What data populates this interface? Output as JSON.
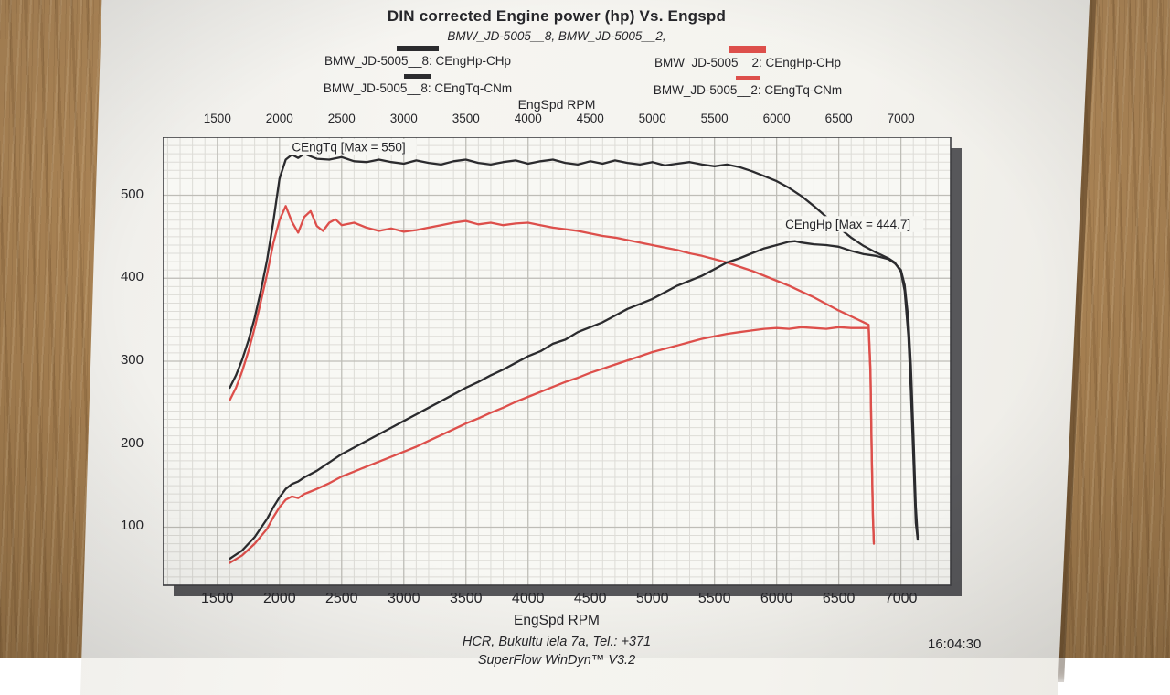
{
  "header": {
    "title": "DIN corrected Engine power (hp) Vs. Engspd",
    "subtitle": "BMW_JD-5005__8, BMW_JD-5005__2,"
  },
  "legend": {
    "columns": [
      {
        "items": [
          {
            "label": "BMW_JD-5005__8: CEngHp-CHp",
            "color": "#2b2b2e",
            "swatch_w": 46,
            "swatch_h": 6
          },
          {
            "label": "BMW_JD-5005__8: CEngTq-CNm",
            "color": "#2b2b2e",
            "swatch_w": 30,
            "swatch_h": 5
          }
        ]
      },
      {
        "items": [
          {
            "label": "BMW_JD-5005__2: CEngHp-CHp",
            "color": "#dd4f4b",
            "swatch_w": 40,
            "swatch_h": 8
          },
          {
            "label": "BMW_JD-5005__2: CEngTq-CNm",
            "color": "#dd4f4b",
            "swatch_w": 27,
            "swatch_h": 5
          }
        ]
      }
    ]
  },
  "axes": {
    "top_label": "EngSpd RPM",
    "bottom_label": "EngSpd RPM"
  },
  "footer": {
    "line1": "HCR, Bukultu iela 7a, Tel.: +371",
    "line2": "SuperFlow WinDyn™ V3.2",
    "timestamp": "16:04:30"
  },
  "chart_data": {
    "type": "line",
    "title": "DIN corrected Engine power (hp) Vs. Engspd",
    "xlabel": "EngSpd RPM",
    "ylabel": "",
    "xlim": [
      1060,
      7400
    ],
    "ylim": [
      30,
      570
    ],
    "x_ticks": [
      1500,
      2000,
      2500,
      3000,
      3500,
      4000,
      4500,
      5000,
      5500,
      6000,
      6500,
      7000
    ],
    "y_ticks": [
      100,
      200,
      300,
      400,
      500
    ],
    "grid": {
      "minor_x_step": 100,
      "minor_y_step": 10
    },
    "annotations": [
      {
        "text": "CEngTq [Max = 550]",
        "x": 2100,
        "y": 553
      },
      {
        "text": "CEngHp [Max = 444.7]",
        "x": 6070,
        "y": 460
      }
    ],
    "series": [
      {
        "name": "BMW_JD-5005__2: CEngTq-CNm",
        "color": "#dd4f4b",
        "width": 2.3,
        "points": [
          [
            1600,
            253
          ],
          [
            1650,
            268
          ],
          [
            1700,
            288
          ],
          [
            1750,
            312
          ],
          [
            1800,
            340
          ],
          [
            1850,
            372
          ],
          [
            1900,
            405
          ],
          [
            1950,
            442
          ],
          [
            2000,
            470
          ],
          [
            2050,
            487
          ],
          [
            2100,
            468
          ],
          [
            2150,
            455
          ],
          [
            2200,
            474
          ],
          [
            2250,
            481
          ],
          [
            2300,
            463
          ],
          [
            2350,
            457
          ],
          [
            2400,
            467
          ],
          [
            2450,
            471
          ],
          [
            2500,
            464
          ],
          [
            2600,
            467
          ],
          [
            2700,
            461
          ],
          [
            2800,
            457
          ],
          [
            2900,
            460
          ],
          [
            3000,
            456
          ],
          [
            3100,
            458
          ],
          [
            3200,
            461
          ],
          [
            3300,
            464
          ],
          [
            3400,
            467
          ],
          [
            3500,
            469
          ],
          [
            3600,
            465
          ],
          [
            3700,
            467
          ],
          [
            3800,
            464
          ],
          [
            3900,
            466
          ],
          [
            4000,
            467
          ],
          [
            4100,
            464
          ],
          [
            4200,
            461
          ],
          [
            4300,
            459
          ],
          [
            4400,
            457
          ],
          [
            4500,
            454
          ],
          [
            4600,
            451
          ],
          [
            4700,
            449
          ],
          [
            4800,
            446
          ],
          [
            4900,
            443
          ],
          [
            5000,
            440
          ],
          [
            5100,
            437
          ],
          [
            5200,
            434
          ],
          [
            5300,
            430
          ],
          [
            5400,
            427
          ],
          [
            5500,
            423
          ],
          [
            5600,
            419
          ],
          [
            5700,
            414
          ],
          [
            5800,
            409
          ],
          [
            5900,
            403
          ],
          [
            6000,
            397
          ],
          [
            6100,
            391
          ],
          [
            6200,
            384
          ],
          [
            6300,
            377
          ],
          [
            6400,
            369
          ],
          [
            6500,
            361
          ],
          [
            6600,
            354
          ],
          [
            6700,
            347
          ],
          [
            6740,
            344
          ],
          [
            6755,
            290
          ],
          [
            6765,
            190
          ],
          [
            6775,
            115
          ],
          [
            6782,
            82
          ]
        ]
      },
      {
        "name": "BMW_JD-5005__2: CEngHp-CHp",
        "color": "#dd4f4b",
        "width": 2.3,
        "points": [
          [
            1600,
            57
          ],
          [
            1700,
            66
          ],
          [
            1800,
            80
          ],
          [
            1900,
            98
          ],
          [
            1950,
            112
          ],
          [
            2000,
            124
          ],
          [
            2050,
            133
          ],
          [
            2100,
            137
          ],
          [
            2150,
            135
          ],
          [
            2200,
            140
          ],
          [
            2250,
            143
          ],
          [
            2300,
            146
          ],
          [
            2400,
            153
          ],
          [
            2500,
            161
          ],
          [
            2600,
            167
          ],
          [
            2700,
            173
          ],
          [
            2800,
            179
          ],
          [
            2900,
            185
          ],
          [
            3000,
            191
          ],
          [
            3100,
            197
          ],
          [
            3200,
            204
          ],
          [
            3300,
            211
          ],
          [
            3400,
            218
          ],
          [
            3500,
            225
          ],
          [
            3600,
            231
          ],
          [
            3700,
            238
          ],
          [
            3800,
            244
          ],
          [
            3900,
            251
          ],
          [
            4000,
            257
          ],
          [
            4100,
            263
          ],
          [
            4200,
            269
          ],
          [
            4300,
            275
          ],
          [
            4400,
            280
          ],
          [
            4500,
            286
          ],
          [
            4600,
            291
          ],
          [
            4700,
            296
          ],
          [
            4800,
            301
          ],
          [
            4900,
            306
          ],
          [
            5000,
            311
          ],
          [
            5100,
            315
          ],
          [
            5200,
            319
          ],
          [
            5300,
            323
          ],
          [
            5400,
            327
          ],
          [
            5500,
            330
          ],
          [
            5600,
            333
          ],
          [
            5700,
            335
          ],
          [
            5800,
            337
          ],
          [
            5900,
            339
          ],
          [
            6000,
            340
          ],
          [
            6100,
            339
          ],
          [
            6200,
            341
          ],
          [
            6300,
            340
          ],
          [
            6400,
            339
          ],
          [
            6500,
            341
          ],
          [
            6600,
            340
          ],
          [
            6700,
            340
          ],
          [
            6740,
            340
          ],
          [
            6755,
            285
          ],
          [
            6765,
            185
          ],
          [
            6775,
            110
          ],
          [
            6782,
            80
          ]
        ]
      },
      {
        "name": "BMW_JD-5005__8: CEngTq-CNm",
        "color": "#2b2b2e",
        "width": 2.3,
        "points": [
          [
            1600,
            268
          ],
          [
            1650,
            283
          ],
          [
            1700,
            302
          ],
          [
            1750,
            325
          ],
          [
            1800,
            352
          ],
          [
            1850,
            385
          ],
          [
            1900,
            422
          ],
          [
            1950,
            468
          ],
          [
            2000,
            520
          ],
          [
            2050,
            543
          ],
          [
            2100,
            549
          ],
          [
            2150,
            545
          ],
          [
            2200,
            550
          ],
          [
            2250,
            547
          ],
          [
            2300,
            544
          ],
          [
            2400,
            543
          ],
          [
            2500,
            546
          ],
          [
            2600,
            541
          ],
          [
            2700,
            540
          ],
          [
            2800,
            543
          ],
          [
            2900,
            540
          ],
          [
            3000,
            538
          ],
          [
            3100,
            542
          ],
          [
            3200,
            539
          ],
          [
            3300,
            537
          ],
          [
            3400,
            541
          ],
          [
            3500,
            543
          ],
          [
            3600,
            539
          ],
          [
            3700,
            537
          ],
          [
            3800,
            540
          ],
          [
            3900,
            542
          ],
          [
            4000,
            538
          ],
          [
            4100,
            541
          ],
          [
            4200,
            543
          ],
          [
            4300,
            539
          ],
          [
            4400,
            537
          ],
          [
            4500,
            541
          ],
          [
            4600,
            538
          ],
          [
            4700,
            542
          ],
          [
            4800,
            539
          ],
          [
            4900,
            537
          ],
          [
            5000,
            540
          ],
          [
            5100,
            536
          ],
          [
            5200,
            538
          ],
          [
            5300,
            540
          ],
          [
            5400,
            537
          ],
          [
            5500,
            535
          ],
          [
            5600,
            537
          ],
          [
            5700,
            534
          ],
          [
            5800,
            529
          ],
          [
            5900,
            523
          ],
          [
            6000,
            517
          ],
          [
            6100,
            509
          ],
          [
            6200,
            499
          ],
          [
            6300,
            487
          ],
          [
            6400,
            474
          ],
          [
            6500,
            461
          ],
          [
            6600,
            449
          ],
          [
            6700,
            439
          ],
          [
            6800,
            431
          ],
          [
            6900,
            424
          ],
          [
            6950,
            419
          ],
          [
            7000,
            408
          ],
          [
            7030,
            385
          ],
          [
            7060,
            330
          ],
          [
            7080,
            265
          ],
          [
            7100,
            185
          ],
          [
            7120,
            105
          ],
          [
            7135,
            85
          ]
        ]
      },
      {
        "name": "BMW_JD-5005__8: CEngHp-CHp",
        "color": "#2b2b2e",
        "width": 2.3,
        "points": [
          [
            1600,
            62
          ],
          [
            1700,
            72
          ],
          [
            1800,
            88
          ],
          [
            1900,
            110
          ],
          [
            1950,
            124
          ],
          [
            2000,
            136
          ],
          [
            2050,
            146
          ],
          [
            2100,
            152
          ],
          [
            2150,
            155
          ],
          [
            2200,
            160
          ],
          [
            2300,
            168
          ],
          [
            2400,
            178
          ],
          [
            2500,
            188
          ],
          [
            2600,
            196
          ],
          [
            2700,
            204
          ],
          [
            2800,
            212
          ],
          [
            2900,
            220
          ],
          [
            3000,
            228
          ],
          [
            3100,
            236
          ],
          [
            3200,
            244
          ],
          [
            3300,
            252
          ],
          [
            3400,
            260
          ],
          [
            3500,
            268
          ],
          [
            3600,
            275
          ],
          [
            3700,
            283
          ],
          [
            3800,
            290
          ],
          [
            3900,
            298
          ],
          [
            4000,
            306
          ],
          [
            4100,
            312
          ],
          [
            4200,
            321
          ],
          [
            4300,
            326
          ],
          [
            4400,
            335
          ],
          [
            4500,
            341
          ],
          [
            4600,
            347
          ],
          [
            4700,
            355
          ],
          [
            4800,
            363
          ],
          [
            4900,
            369
          ],
          [
            5000,
            375
          ],
          [
            5100,
            383
          ],
          [
            5200,
            391
          ],
          [
            5300,
            397
          ],
          [
            5400,
            403
          ],
          [
            5500,
            411
          ],
          [
            5600,
            419
          ],
          [
            5700,
            424
          ],
          [
            5800,
            430
          ],
          [
            5900,
            436
          ],
          [
            6000,
            440
          ],
          [
            6100,
            444
          ],
          [
            6150,
            444.7
          ],
          [
            6200,
            443
          ],
          [
            6300,
            441
          ],
          [
            6400,
            440
          ],
          [
            6500,
            438
          ],
          [
            6600,
            433
          ],
          [
            6700,
            429
          ],
          [
            6800,
            427
          ],
          [
            6900,
            423
          ],
          [
            6950,
            418
          ],
          [
            7000,
            410
          ],
          [
            7030,
            392
          ],
          [
            7060,
            350
          ],
          [
            7080,
            295
          ],
          [
            7100,
            215
          ],
          [
            7120,
            125
          ],
          [
            7135,
            88
          ]
        ]
      }
    ]
  }
}
